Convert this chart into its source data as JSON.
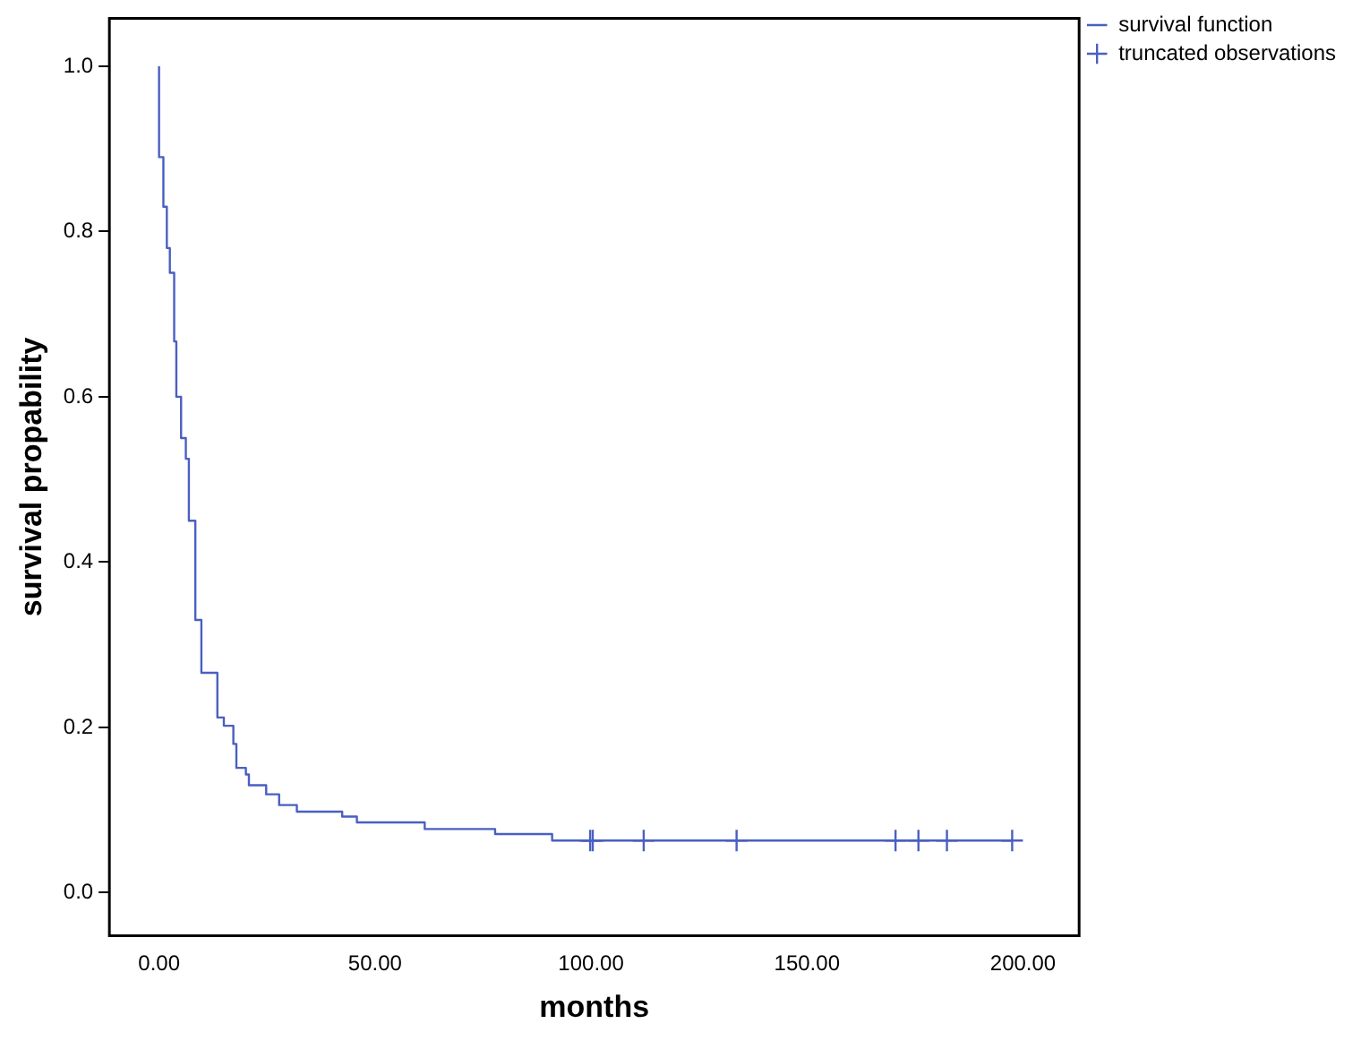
{
  "chart_data": {
    "type": "step",
    "xlabel": "months",
    "ylabel": "survival propability",
    "xlim": [
      -11.5,
      213
    ],
    "ylim": [
      -0.052,
      1.058
    ],
    "xticks": [
      {
        "value": 0,
        "label": "0.00"
      },
      {
        "value": 50,
        "label": "50.00"
      },
      {
        "value": 100,
        "label": "100.00"
      },
      {
        "value": 150,
        "label": "150.00"
      },
      {
        "value": 200,
        "label": "200.00"
      }
    ],
    "yticks": [
      {
        "value": 0,
        "label": "0.0"
      },
      {
        "value": 0.2,
        "label": "0.2"
      },
      {
        "value": 0.4,
        "label": "0.4"
      },
      {
        "value": 0.6,
        "label": "0.6"
      },
      {
        "value": 0.8,
        "label": "0.8"
      },
      {
        "value": 1,
        "label": "1.0"
      }
    ],
    "grid": false,
    "legend": "top right",
    "series": [
      {
        "name": "survival function",
        "color": "#4a5fc1",
        "marker": "none",
        "line_style": "solid",
        "x": [
          0,
          1.0,
          1.8,
          2.5,
          3.5,
          4.0,
          5.1,
          6.2,
          6.9,
          8.4,
          9.8,
          13.5,
          15,
          17.2,
          17.9,
          20.1,
          20.8,
          24.8,
          27.8,
          31.9,
          42.4,
          45.8,
          61.5,
          77.8,
          91,
          99.4,
          197.5
        ],
        "values": [
          1.0,
          0.89,
          0.83,
          0.78,
          0.75,
          0.667,
          0.6,
          0.55,
          0.525,
          0.45,
          0.33,
          0.266,
          0.212,
          0.202,
          0.18,
          0.151,
          0.143,
          0.13,
          0.119,
          0.106,
          0.098,
          0.092,
          0.085,
          0.077,
          0.071,
          0.063,
          0.063
        ]
      },
      {
        "name": "truncated observations",
        "type": "scatter",
        "color": "#4a5fc1",
        "marker": "cross",
        "x": [
          99.8,
          100.4,
          112.2,
          133.7,
          170.5,
          175.8,
          182.4,
          197.5
        ],
        "values": [
          0.063,
          0.063,
          0.063,
          0.063,
          0.063,
          0.063,
          0.063,
          0.063
        ]
      }
    ]
  }
}
